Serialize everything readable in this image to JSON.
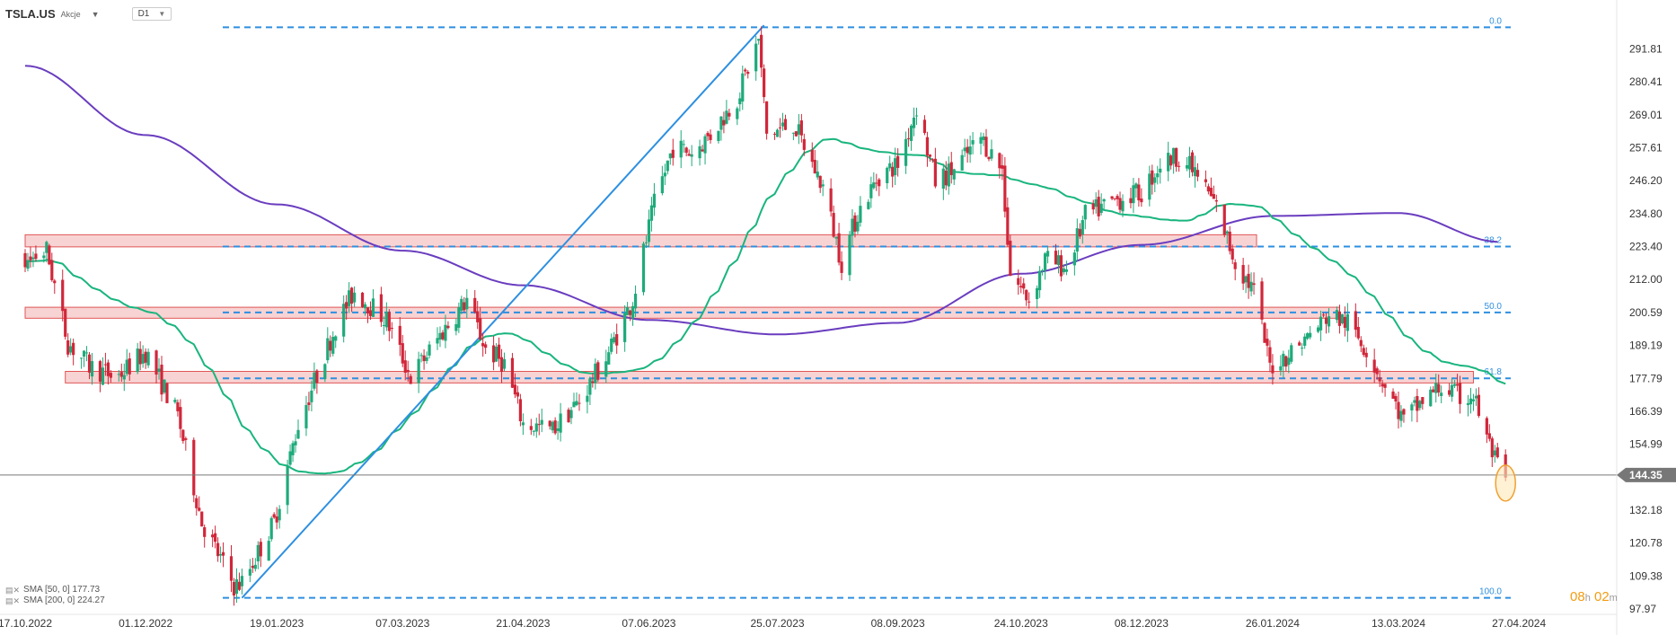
{
  "header": {
    "symbol": "TSLA.US",
    "subtitle": "Akcje",
    "timeframe": "D1"
  },
  "legend": [
    {
      "label": "SMA [50, 0] 177.73"
    },
    {
      "label": "SMA [200, 0] 224.27"
    }
  ],
  "timer": {
    "hours": "08",
    "h": "h",
    "minutes": "02",
    "m": "m"
  },
  "colors": {
    "bull": "#1faa7b",
    "bear": "#d0273a",
    "sma50": "#19b57e",
    "sma200": "#6a3dbf",
    "fib": "#2d8fe0",
    "trendline": "#2d8fe0",
    "zoneFill": "#f8d3d3",
    "zoneStroke": "#e05555",
    "priceLine": "#777777",
    "priceLabel": "#777777",
    "circle": "#f0a030",
    "circleFill": "#fde8b8"
  },
  "chart_data": {
    "type": "candlestick",
    "symbol": "TSLA.US",
    "timeframe": "D1",
    "y_ticks": [
      97.97,
      109.38,
      120.78,
      132.18,
      144.35,
      154.99,
      166.39,
      177.79,
      189.19,
      200.59,
      212.0,
      223.4,
      234.8,
      246.2,
      257.61,
      269.01,
      280.41,
      291.81
    ],
    "x_ticks": [
      "17.10.2022",
      "01.12.2022",
      "19.01.2023",
      "07.03.2023",
      "21.04.2023",
      "07.06.2023",
      "25.07.2023",
      "08.09.2023",
      "24.10.2023",
      "08.12.2023",
      "26.01.2024",
      "13.03.2024",
      "27.04.2024"
    ],
    "current_price": "144.35",
    "fibonacci": [
      {
        "level": "0.0",
        "price": 299.3
      },
      {
        "level": "38.2",
        "price": 223.4
      },
      {
        "level": "50.0",
        "price": 200.6
      },
      {
        "level": "61.8",
        "price": 177.8
      },
      {
        "level": "100.0",
        "price": 101.8
      }
    ],
    "zones": [
      {
        "top": 227.5,
        "bottom": 223.3,
        "from": "17.10.2022",
        "to": "20.01.2024"
      },
      {
        "top": 202.4,
        "bottom": 198.6,
        "from": "17.10.2022",
        "to": "20.02.2024"
      },
      {
        "top": 180.2,
        "bottom": 176.2,
        "from": "01.11.2022",
        "to": "10.04.2024"
      }
    ],
    "trendline": {
      "from": {
        "date": "06.01.2023",
        "price": 101.8
      },
      "to": {
        "date": "20.07.2023",
        "price": 300.0
      }
    },
    "sma50_label": "SMA [50, 0] 177.73",
    "sma200_label": "SMA [200, 0] 224.27"
  }
}
